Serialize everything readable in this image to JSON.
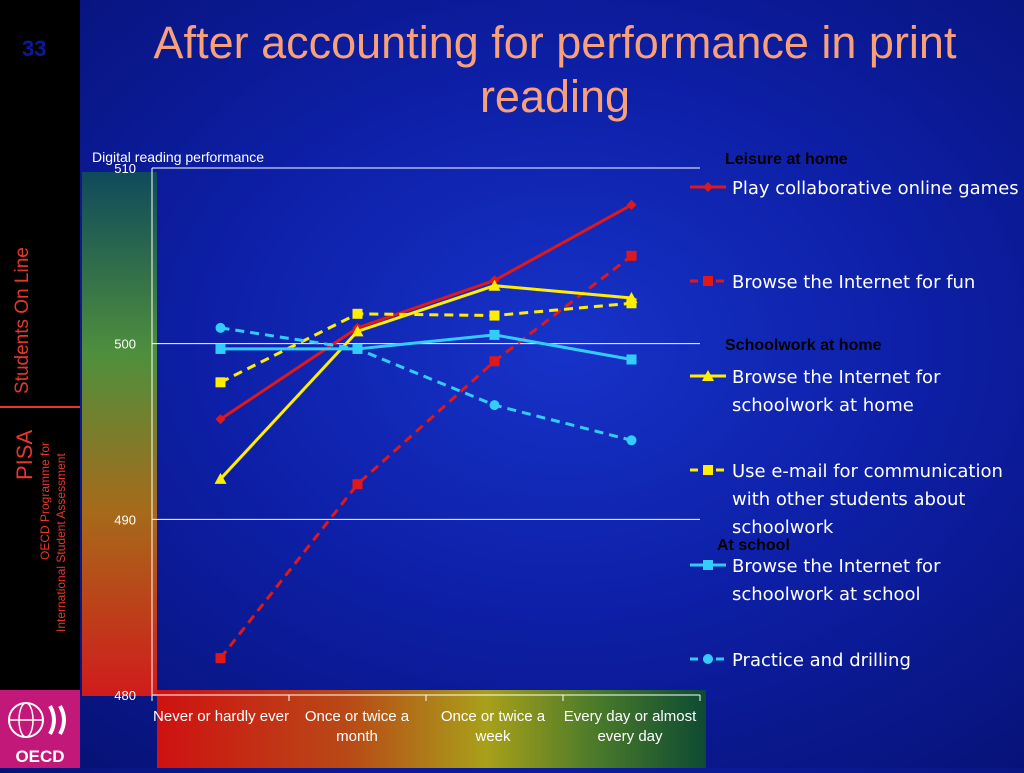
{
  "slide": {
    "number": "33",
    "title": "After accounting for performance in print reading",
    "sidebar_label": "Students On Line",
    "pisa_label": "PISA",
    "oecd_programme_line1": "OECD Programme for",
    "oecd_programme_line2": "International Student Assessment",
    "logo_text": "OECD"
  },
  "legend": {
    "groups": [
      {
        "heading": "Leisure at home",
        "color": "#e01818"
      },
      {
        "heading": "Schoolwork at home",
        "color": "#ffee00"
      },
      {
        "heading": "At school",
        "color": "#33ccff"
      }
    ]
  },
  "chart_data": {
    "type": "line",
    "ylabel": "Digital reading performance",
    "xlabel": "",
    "ylim": [
      480,
      510
    ],
    "yticks": [
      480,
      490,
      500,
      510
    ],
    "grid": true,
    "legend_position": "right",
    "categories": [
      "Never or hardly ever",
      "Once or twice a month",
      "Once or twice a week",
      "Every day or almost every day"
    ],
    "series": [
      {
        "name": "Play collaborative online games",
        "group": "Leisure at home",
        "color": "#e01818",
        "dash": false,
        "marker": "diamond",
        "values": [
          495.7,
          500.9,
          503.6,
          507.9
        ]
      },
      {
        "name": "Browse the Internet for fun",
        "group": "Leisure at home",
        "color": "#e01818",
        "dash": true,
        "marker": "square",
        "values": [
          482.1,
          492.0,
          499.0,
          505.0
        ]
      },
      {
        "name": "Browse the Internet for schoolwork at home",
        "group": "Schoolwork at home",
        "color": "#ffee00",
        "dash": false,
        "marker": "triangle",
        "values": [
          492.3,
          500.7,
          503.3,
          502.6
        ]
      },
      {
        "name": "Use e-mail for communication with other students about schoolwork",
        "group": "Schoolwork at home",
        "color": "#ffee00",
        "dash": true,
        "marker": "square",
        "values": [
          497.8,
          501.7,
          501.6,
          502.3
        ]
      },
      {
        "name": "Browse the Internet for schoolwork at school",
        "group": "At school",
        "color": "#33ccff",
        "dash": false,
        "marker": "square",
        "values": [
          499.7,
          499.7,
          500.5,
          499.1
        ]
      },
      {
        "name": "Practice and drilling",
        "group": "At school",
        "color": "#33ccff",
        "dash": true,
        "marker": "circle",
        "values": [
          500.9,
          499.7,
          496.5,
          494.5
        ]
      }
    ]
  }
}
